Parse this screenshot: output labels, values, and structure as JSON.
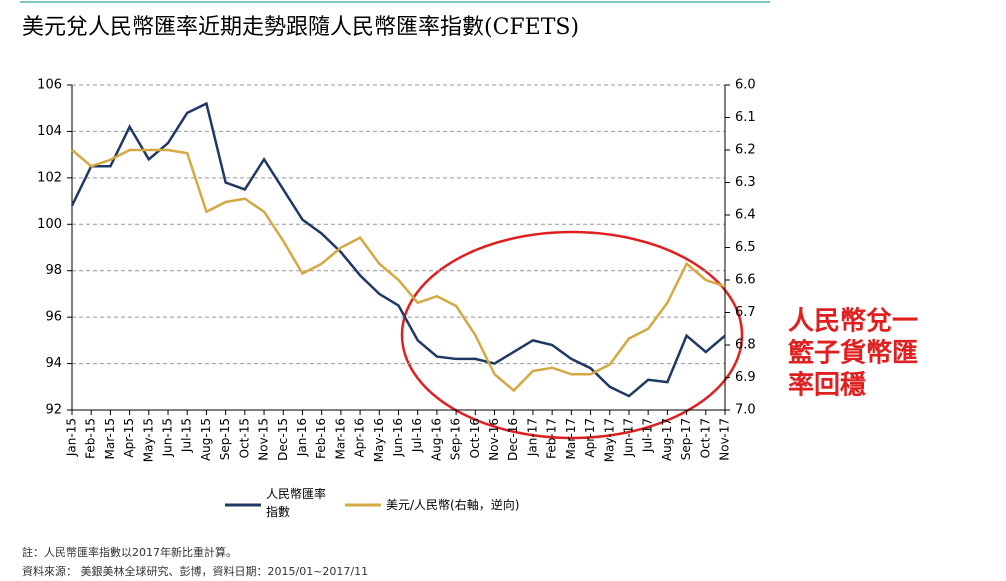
{
  "chart_data": {
    "type": "line",
    "title": "美元兌人民幣匯率近期走勢跟隨人民幣匯率指數(CFETS)",
    "categories": [
      "Jan-15",
      "Feb-15",
      "Mar-15",
      "Apr-15",
      "May-15",
      "Jun-15",
      "Jul-15",
      "Aug-15",
      "Sep-15",
      "Oct-15",
      "Nov-15",
      "Dec-15",
      "Jan-16",
      "Feb-16",
      "Mar-16",
      "Apr-16",
      "May-16",
      "Jun-16",
      "Jul-16",
      "Aug-16",
      "Sep-16",
      "Oct-16",
      "Nov-16",
      "Dec-16",
      "Jan-17",
      "Feb-17",
      "Mar-17",
      "Apr-17",
      "May-17",
      "Jun-17",
      "Jul-17",
      "Aug-17",
      "Sep-17",
      "Oct-17",
      "Nov-17"
    ],
    "series": [
      {
        "name": "人民幣匯率指數",
        "color": "#1f3864",
        "values": [
          100.8,
          102.5,
          102.5,
          104.2,
          102.8,
          103.5,
          104.8,
          105.2,
          101.8,
          101.5,
          102.8,
          101.5,
          100.2,
          99.6,
          98.8,
          97.8,
          97.0,
          96.5,
          95.0,
          94.3,
          94.2,
          94.2,
          94.0,
          94.5,
          95.0,
          94.8,
          94.2,
          93.8,
          93.0,
          92.6,
          93.3,
          93.2,
          95.2,
          94.5,
          95.2
        ]
      },
      {
        "name": "美元/人民幣(右軸，逆向)",
        "color": "#d4a843",
        "axis": "y2",
        "values": [
          6.2,
          6.25,
          6.23,
          6.2,
          6.2,
          6.2,
          6.21,
          6.39,
          6.36,
          6.35,
          6.39,
          6.48,
          6.58,
          6.55,
          6.5,
          6.47,
          6.55,
          6.6,
          6.67,
          6.65,
          6.68,
          6.77,
          6.89,
          6.94,
          6.88,
          6.87,
          6.89,
          6.89,
          6.86,
          6.78,
          6.75,
          6.67,
          6.55,
          6.6,
          6.62
        ]
      }
    ],
    "ylim": [
      92,
      106
    ],
    "yticks": [
      92,
      94,
      96,
      98,
      100,
      102,
      104,
      106
    ],
    "y2lim": [
      6,
      7
    ],
    "y2_reversed": true,
    "y2ticks": [
      {
        "value": 6,
        "label": "6.0"
      },
      6.1,
      6.2,
      6.3,
      6.4,
      6.5,
      6.6,
      6.7,
      6.8,
      6.9,
      {
        "value": 7,
        "label": "7.0"
      }
    ],
    "grid": true,
    "annotation": [
      "人民幣兌一",
      "籃子貨幣匯",
      "率回穩"
    ],
    "notes": [
      "註：人民幣匯率指數以2017年新比重計算。",
      "資料來源： 美銀美林全球研究、彭博，資料日期：2015/01~2017/11"
    ]
  }
}
